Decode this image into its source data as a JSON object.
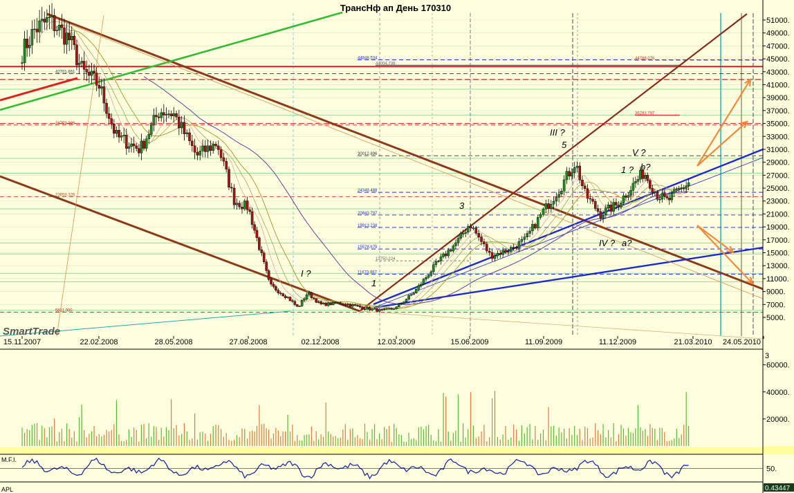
{
  "chart_data": [
    {
      "type": "candlestick",
      "title": "ТрансНф ап День 170310",
      "y_ticks": [
        "51000.",
        "49000.",
        "47000.",
        "45000.",
        "43000.",
        "41000.",
        "39000.",
        "37000.",
        "35000.",
        "33000.",
        "31000.",
        "29000.",
        "27000.",
        "25000.",
        "23000.",
        "21000.",
        "19000.",
        "17000.",
        "15000.",
        "13000.",
        "11000.",
        "9000.",
        "7000.",
        "5000."
      ],
      "x_ticks": [
        "15.11.2007",
        "22.02.2008",
        "28.05.2008",
        "27.08.2008",
        "02.12.2008",
        "12.03.2009",
        "15.06.2009",
        "11.09.2009",
        "11.12.2009",
        "21.03.2010",
        "24.05.2010"
      ],
      "ylim": [
        5000,
        51000
      ],
      "price_path": [
        [
          "15.11.2007",
          46000
        ],
        [
          "01.12.2007",
          49500
        ],
        [
          "20.12.2007",
          51000
        ],
        [
          "15.01.2008",
          48000
        ],
        [
          "01.02.2008",
          43000
        ],
        [
          "22.02.2008",
          41000
        ],
        [
          "15.03.2008",
          33000
        ],
        [
          "15.04.2008",
          31000
        ],
        [
          "10.05.2008",
          37000
        ],
        [
          "28.05.2008",
          36500
        ],
        [
          "25.06.2008",
          30000
        ],
        [
          "20.07.2008",
          32000
        ],
        [
          "10.08.2008",
          23000
        ],
        [
          "27.08.2008",
          22000
        ],
        [
          "25.09.2008",
          10000
        ],
        [
          "20.10.2008",
          8000
        ],
        [
          "02.11.2008",
          6500
        ],
        [
          "15.11.2008",
          8800
        ],
        [
          "02.12.2008",
          7000
        ],
        [
          "30.12.2008",
          7200
        ],
        [
          "01.02.2009",
          6400
        ],
        [
          "20.02.2009",
          6000
        ],
        [
          "12.03.2009",
          6500
        ],
        [
          "05.04.2009",
          9000
        ],
        [
          "01.05.2009",
          13000
        ],
        [
          "01.06.2009",
          17000
        ],
        [
          "15.06.2009",
          19500
        ],
        [
          "10.07.2009",
          14500
        ],
        [
          "01.08.2009",
          15500
        ],
        [
          "20.08.2009",
          17000
        ],
        [
          "11.09.2009",
          21500
        ],
        [
          "01.10.2009",
          25000
        ],
        [
          "20.10.2009",
          29000
        ],
        [
          "01.11.2009",
          24000
        ],
        [
          "20.11.2009",
          21000
        ],
        [
          "11.12.2009",
          22500
        ],
        [
          "28.12.2009",
          25000
        ],
        [
          "15.01.2010",
          27500
        ],
        [
          "01.02.2010",
          24000
        ],
        [
          "15.02.2010",
          23000
        ],
        [
          "01.03.2010",
          24500
        ],
        [
          "17.03.2010",
          26000
        ]
      ],
      "fib_levels": [
        {
          "label": "44848.534",
          "value": 44848
        },
        {
          "label": "44004.738",
          "value": 44004
        },
        {
          "label": "44786.076",
          "value": 44786
        },
        {
          "label": "42701.651",
          "value": 42701
        },
        {
          "label": "36283.797",
          "value": 36283
        },
        {
          "label": "34759.396",
          "value": 34759
        },
        {
          "label": "30012.896",
          "value": 30012
        },
        {
          "label": "24349.488",
          "value": 24349
        },
        {
          "label": "23659.326",
          "value": 23659
        },
        {
          "label": "20843.797",
          "value": 20843
        },
        {
          "label": "18913.238",
          "value": 18913
        },
        {
          "label": "15578.679",
          "value": 15578
        },
        {
          "label": "13750.224",
          "value": 13750
        },
        {
          "label": "11673.987",
          "value": 11673
        },
        {
          "label": "5811.000",
          "value": 5811
        }
      ],
      "wave_labels": [
        "I ?",
        "1",
        "3",
        "III ?",
        "5",
        "IV ?",
        "a?",
        "V ?",
        "1 ?",
        "b?"
      ]
    },
    {
      "type": "bar",
      "title": "3",
      "y_ticks": [
        "60000.",
        "40000.",
        "20000."
      ],
      "ylim": [
        0,
        68000
      ]
    },
    {
      "type": "line",
      "title": "M.F.I.",
      "y_ticks": [
        "50."
      ],
      "ylim": [
        0,
        100
      ]
    },
    {
      "type": "line",
      "title": "APL",
      "y_ticks": [
        "0.43447"
      ]
    }
  ],
  "logo": "SmartTrade"
}
